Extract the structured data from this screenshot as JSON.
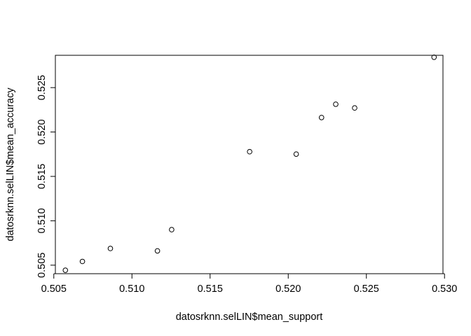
{
  "chart_data": {
    "type": "scatter",
    "title": "",
    "xlabel": "datosrknn.selLIN$mean_support",
    "ylabel": "datosrknn.selLIN$mean_accuracy",
    "xlim": [
      0.5051,
      0.5299
    ],
    "ylim": [
      0.50404,
      0.52864
    ],
    "x_ticks": [
      0.505,
      0.51,
      0.515,
      0.52,
      0.525,
      0.53
    ],
    "x_tick_labels": [
      "0.505",
      "0.510",
      "0.515",
      "0.520",
      "0.525",
      "0.530"
    ],
    "y_ticks": [
      0.505,
      0.51,
      0.515,
      0.52,
      0.525
    ],
    "y_tick_labels": [
      "0.505",
      "0.510",
      "0.515",
      "0.520",
      "0.525"
    ],
    "grid": false,
    "legend": "none",
    "marker": "open-circle",
    "color": "#000000",
    "points": [
      {
        "x": 0.50574,
        "y": 0.50443
      },
      {
        "x": 0.50683,
        "y": 0.50542
      },
      {
        "x": 0.50862,
        "y": 0.50688
      },
      {
        "x": 0.51163,
        "y": 0.50661
      },
      {
        "x": 0.51254,
        "y": 0.509
      },
      {
        "x": 0.51753,
        "y": 0.51778
      },
      {
        "x": 0.52051,
        "y": 0.51751
      },
      {
        "x": 0.52213,
        "y": 0.52163
      },
      {
        "x": 0.52304,
        "y": 0.52313
      },
      {
        "x": 0.52425,
        "y": 0.52271
      },
      {
        "x": 0.52933,
        "y": 0.52842
      }
    ]
  }
}
